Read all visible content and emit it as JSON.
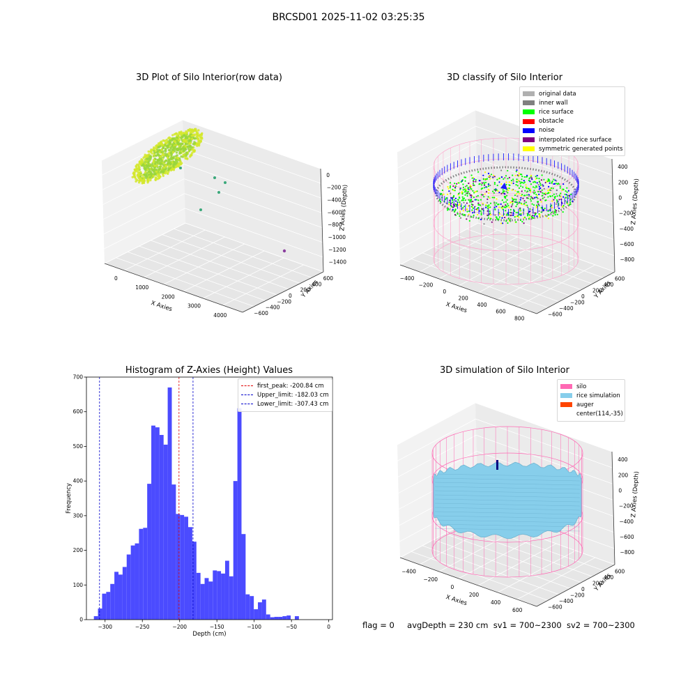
{
  "page": {
    "title": "BRCSD01 2025-11-02 03:25:35",
    "status": {
      "flag": "flag = 0",
      "avg_depth": "avgDepth = 230 cm",
      "sv1": "sv1 = 700~2300",
      "sv2": "sv2 = 700~2300"
    }
  },
  "chart_data": [
    {
      "type": "scatter",
      "projection": "3d",
      "title": "3D Plot of Silo Interior(row data)",
      "xlabel": "X Axies",
      "ylabel": "Y Axies",
      "zlabel": "Z Axies (Depth)",
      "x_ticks": [
        "0",
        "1000",
        "2000",
        "3000",
        "4000"
      ],
      "y_ticks": [
        "600",
        "400",
        "200",
        "0",
        "−200",
        "−400",
        "−600"
      ],
      "z_ticks": [
        "0",
        "−200",
        "−400",
        "−600",
        "−800",
        "−1000",
        "−1200",
        "−1400"
      ],
      "colors": {
        "point_main": "#9ad63a",
        "point_light": "#d4e82c",
        "point_outlier": "#3aa87a",
        "point_far": "#8a3d9e"
      }
    },
    {
      "type": "scatter",
      "projection": "3d",
      "title": "3D classify of Silo Interior",
      "xlabel": "X Axies",
      "ylabel": "Y Axies",
      "zlabel": "Z Axies (Depth)",
      "x_ticks": [
        "−400",
        "−200",
        "0",
        "200",
        "400",
        "600",
        "800"
      ],
      "y_ticks": [
        "600",
        "400",
        "200",
        "0",
        "−200",
        "−400",
        "−600"
      ],
      "z_ticks": [
        "400",
        "200",
        "0",
        "−200",
        "−400",
        "−600",
        "−800"
      ],
      "legend_position": "top-right",
      "legend": [
        {
          "label": "original data",
          "color": "#b0b0b0"
        },
        {
          "label": "inner wall",
          "color": "#808080"
        },
        {
          "label": "rice surface",
          "color": "#00ff00"
        },
        {
          "label": "obstacle",
          "color": "#ff0000"
        },
        {
          "label": "noise",
          "color": "#0000ff"
        },
        {
          "label": "interpolated rice surface",
          "color": "#800080"
        },
        {
          "label": "symmetric generated points",
          "color": "#ffff00"
        }
      ],
      "wire_color": "#ff9ec8"
    },
    {
      "type": "bar",
      "title": "Histogram of Z-Axies (Height) Values",
      "xlabel": "Depth (cm)",
      "ylabel": "Frequency",
      "bin_start": -315,
      "bin_width": 5.5,
      "values": [
        10,
        32,
        75,
        80,
        103,
        138,
        130,
        152,
        188,
        214,
        220,
        262,
        265,
        392,
        560,
        555,
        533,
        505,
        670,
        390,
        305,
        302,
        297,
        267,
        225,
        135,
        103,
        120,
        110,
        142,
        140,
        133,
        170,
        125,
        400,
        610,
        247,
        73,
        68,
        30,
        50,
        58,
        15,
        7,
        8,
        8,
        10,
        12,
        0,
        10
      ],
      "xlim": [
        -325,
        5
      ],
      "ylim": [
        0,
        700
      ],
      "x_ticks": [
        -300,
        -250,
        -200,
        -150,
        -100,
        -50,
        0
      ],
      "y_ticks": [
        0,
        100,
        200,
        300,
        400,
        500,
        600,
        700
      ],
      "bar_color": "#4b4bff",
      "vlines": [
        {
          "x": -200.84,
          "color": "#e00000",
          "label": "first_peak: -200.84 cm"
        },
        {
          "x": -182.03,
          "color": "#0000cc",
          "label": "Upper_limit: -182.03 cm"
        },
        {
          "x": -307.43,
          "color": "#0000cc",
          "label": "Lower_limit: -307.43 cm"
        }
      ],
      "legend_position": "top-right"
    },
    {
      "type": "surface",
      "projection": "3d",
      "title": "3D simulation of Silo Interior",
      "xlabel": "X Axies",
      "ylabel": "Y Axies",
      "zlabel": "Z Axies (Depth)",
      "x_ticks": [
        "−400",
        "−200",
        "0",
        "200",
        "400",
        "600"
      ],
      "y_ticks": [
        "600",
        "400",
        "200",
        "0",
        "−200",
        "−400",
        "−600"
      ],
      "z_ticks": [
        "400",
        "200",
        "0",
        "−200",
        "−400",
        "−600",
        "−800"
      ],
      "legend_position": "top-right",
      "legend": [
        {
          "label": "silo",
          "color": "#ff69b4"
        },
        {
          "label": "rice simulation",
          "color": "#87ceeb"
        },
        {
          "label": "auger",
          "color": "#ff4500"
        },
        {
          "label": "center(114,-35)",
          "color": ""
        }
      ],
      "surface_color": "#87ceeb",
      "wire_color": "#ff69b4",
      "auger_color": "#000080"
    }
  ]
}
